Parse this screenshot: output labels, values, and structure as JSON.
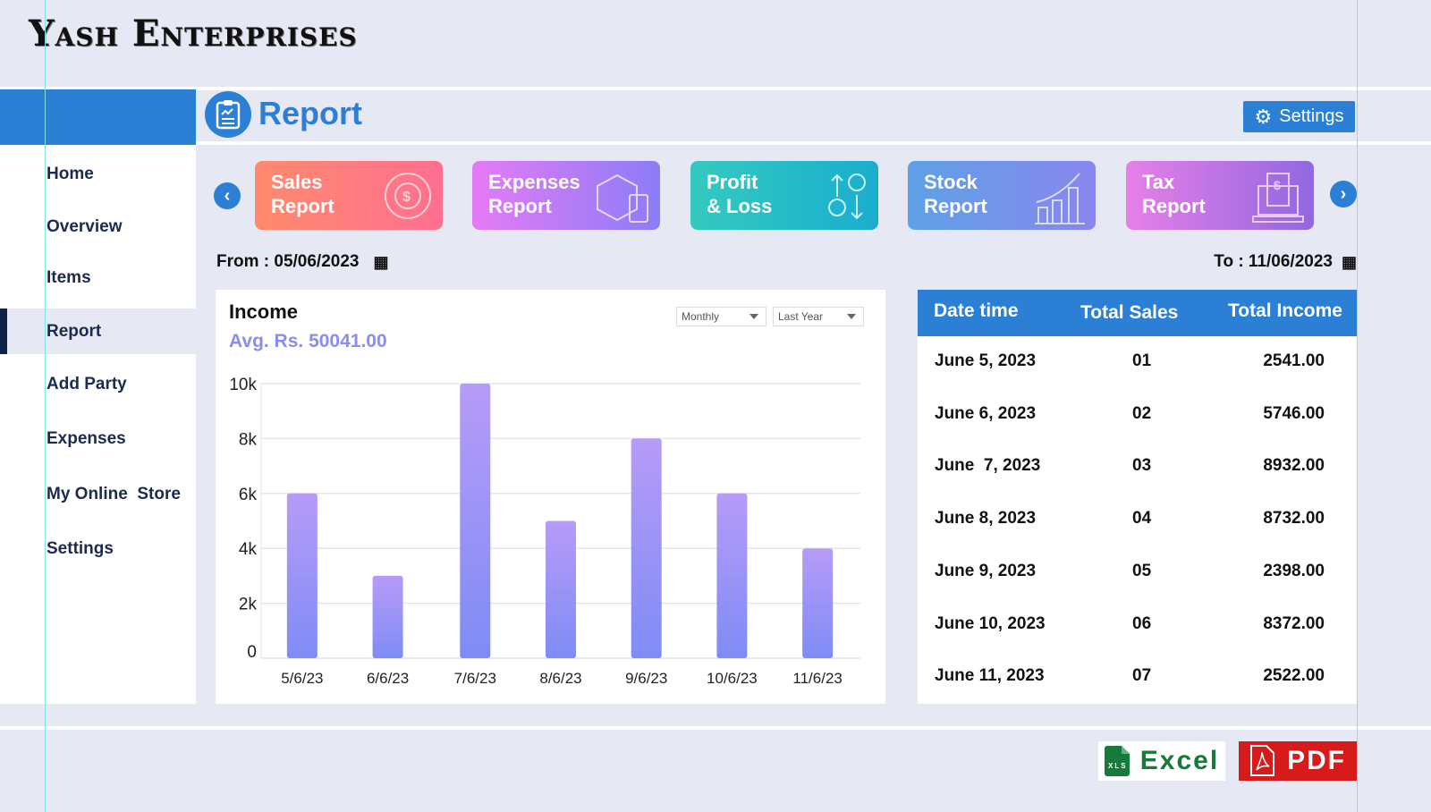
{
  "brand": "Yash Enterprises",
  "sidebar": {
    "items": [
      {
        "label": "Home"
      },
      {
        "label": "Overview"
      },
      {
        "label": "Items"
      },
      {
        "label": "Report"
      },
      {
        "label": "Add Party"
      },
      {
        "label": "Expenses"
      },
      {
        "label": "My Online  Store"
      },
      {
        "label": "Settings"
      }
    ],
    "active": "Report"
  },
  "header": {
    "title": "Report",
    "settings_label": "Settings"
  },
  "cards": [
    {
      "line1": "Sales",
      "line2": "Report"
    },
    {
      "line1": "Expenses",
      "line2": "Report"
    },
    {
      "line1": "Profit",
      "line2": "& Loss"
    },
    {
      "line1": "Stock",
      "line2": "Report"
    },
    {
      "line1": "Tax",
      "line2": "Report"
    }
  ],
  "dates": {
    "from": "From : 05/06/2023",
    "to": "To : 11/06/2023"
  },
  "income": {
    "title": "Income",
    "avg": "Avg. Rs. 50041.00",
    "period": "Monthly",
    "range": "Last Year"
  },
  "chart_data": {
    "type": "bar",
    "title": "Income",
    "categories": [
      "5/6/23",
      "6/6/23",
      "7/6/23",
      "8/6/23",
      "9/6/23",
      "10/6/23",
      "11/6/23"
    ],
    "values": [
      6000,
      3000,
      10000,
      5000,
      8000,
      6000,
      4000
    ],
    "ylim": [
      0,
      10000
    ],
    "yticks": [
      0,
      2000,
      4000,
      6000,
      8000,
      10000
    ],
    "ytick_labels": [
      "0",
      "2k",
      "4k",
      "6k",
      "8k",
      "10k"
    ],
    "grid": true
  },
  "table": {
    "headers": [
      "Date time",
      "Total Sales",
      "Total Income"
    ],
    "rows": [
      [
        "June 5, 2023",
        "01",
        "2541.00"
      ],
      [
        "June 6, 2023",
        "02",
        "5746.00"
      ],
      [
        "June  7, 2023",
        "03",
        "8932.00"
      ],
      [
        "June 8, 2023",
        "04",
        "8732.00"
      ],
      [
        "June 9, 2023",
        "05",
        "2398.00"
      ],
      [
        "June 10, 2023",
        "06",
        "8372.00"
      ],
      [
        "June 11, 2023",
        "07",
        "2522.00"
      ]
    ]
  },
  "export": {
    "excel": "Excel",
    "excel_badge": "XLS",
    "pdf": "PDF"
  },
  "colors": {
    "primary": "#2b7fd4",
    "bar_top": "#b79bf8",
    "bar_bottom": "#7f8cf6",
    "excel": "#157a3c",
    "pdf": "#d71a1a"
  }
}
